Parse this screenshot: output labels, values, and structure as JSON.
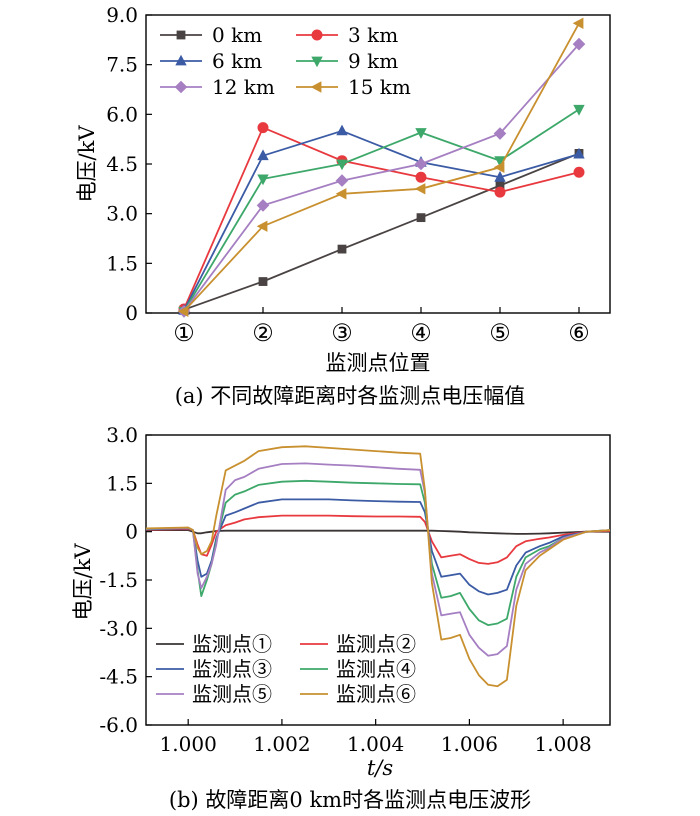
{
  "captions": {
    "a": "(a)  不同故障距离时各监测点电压幅值",
    "b": "(b)  故障距离0 km时各监测点电压波形"
  },
  "chart_data": [
    {
      "type": "line",
      "ylabel": "电压/kV",
      "xlabel": "监测点位置",
      "categories": [
        "①",
        "②",
        "③",
        "④",
        "⑤",
        "⑥"
      ],
      "ylim": [
        0,
        9.0
      ],
      "yticks": [
        "0",
        "1.5",
        "3.0",
        "4.5",
        "6.0",
        "7.5",
        "9.0"
      ],
      "legend_position": "top-left",
      "series": [
        {
          "name": "0 km",
          "color": "#4a4343",
          "marker": "square",
          "values": [
            0.1,
            0.95,
            1.93,
            2.88,
            3.85,
            4.82
          ]
        },
        {
          "name": "3 km",
          "color": "#e8393f",
          "marker": "circle",
          "values": [
            0.12,
            5.6,
            4.6,
            4.1,
            3.65,
            4.25
          ]
        },
        {
          "name": "6 km",
          "color": "#3b5ba5",
          "marker": "triangle",
          "values": [
            0.08,
            4.75,
            5.5,
            4.55,
            4.1,
            4.8
          ]
        },
        {
          "name": "9 km",
          "color": "#3da86a",
          "marker": "tri-down",
          "values": [
            0.05,
            4.05,
            4.5,
            5.45,
            4.6,
            6.15
          ]
        },
        {
          "name": "12 km",
          "color": "#a57fc2",
          "marker": "diamond",
          "values": [
            0.05,
            3.25,
            4.0,
            4.5,
            5.42,
            8.12
          ]
        },
        {
          "name": "15 km",
          "color": "#c8902f",
          "marker": "tri-left",
          "values": [
            0.05,
            2.62,
            3.6,
            3.75,
            4.4,
            8.75
          ]
        }
      ]
    },
    {
      "type": "line",
      "ylabel": "电压/kV",
      "xlabel": "t/s",
      "xlim": [
        0.9991,
        1.009
      ],
      "ylim": [
        -6.0,
        3.0
      ],
      "xticks": [
        "1.000",
        "1.002",
        "1.004",
        "1.006",
        "1.008"
      ],
      "yticks": [
        "3.0",
        "1.5",
        "0",
        "-1.5",
        "-3.0",
        "-4.5",
        "-6.0"
      ],
      "legend_position": "bottom-left",
      "time": [
        0.9991,
        1.0,
        1.0001,
        1.0002,
        1.00028,
        1.0004,
        1.0005,
        1.0006,
        1.0008,
        1.001,
        1.0012,
        1.0015,
        1.002,
        1.0025,
        1.003,
        1.0035,
        1.004,
        1.0045,
        1.00495,
        1.00505,
        1.0052,
        1.0054,
        1.0056,
        1.0058,
        1.006,
        1.0062,
        1.0064,
        1.0066,
        1.0068,
        1.007,
        1.0072,
        1.0075,
        1.0077,
        1.008,
        1.0085,
        1.009
      ],
      "series": [
        {
          "name": "监测点①",
          "color": "#3a3434",
          "values": [
            0.05,
            0.05,
            0,
            -0.05,
            -0.05,
            -0.02,
            0,
            0.02,
            0.03,
            0.03,
            0.03,
            0.03,
            0.03,
            0.03,
            0.03,
            0.03,
            0.03,
            0.03,
            0.03,
            0.03,
            0.03,
            0.02,
            0.01,
            0,
            -0.02,
            -0.03,
            -0.04,
            -0.05,
            -0.06,
            -0.07,
            -0.07,
            -0.06,
            -0.05,
            -0.03,
            0,
            0
          ]
        },
        {
          "name": "监测点②",
          "color": "#e8393f",
          "values": [
            0.06,
            0.08,
            0.05,
            -0.4,
            -0.7,
            -0.75,
            -0.4,
            0,
            0.2,
            0.28,
            0.38,
            0.45,
            0.5,
            0.5,
            0.5,
            0.48,
            0.47,
            0.47,
            0.46,
            0.3,
            -0.3,
            -0.8,
            -0.75,
            -0.7,
            -0.85,
            -0.97,
            -1.0,
            -0.95,
            -0.8,
            -0.45,
            -0.3,
            -0.22,
            -0.18,
            -0.1,
            0,
            0.02
          ]
        },
        {
          "name": "监测点③",
          "color": "#3b5ba5",
          "values": [
            0.07,
            0.1,
            0.05,
            -0.9,
            -1.4,
            -1.3,
            -0.9,
            -0.2,
            0.5,
            0.6,
            0.72,
            0.9,
            1.0,
            1.0,
            1.0,
            0.97,
            0.95,
            0.93,
            0.92,
            0.6,
            -0.6,
            -1.4,
            -1.35,
            -1.3,
            -1.65,
            -1.85,
            -1.95,
            -1.9,
            -1.8,
            -1.05,
            -0.65,
            -0.45,
            -0.35,
            -0.15,
            0,
            0.05
          ]
        },
        {
          "name": "监测点④",
          "color": "#3da86a",
          "values": [
            0.08,
            0.12,
            0.05,
            -1.2,
            -2.0,
            -1.5,
            -1.0,
            -0.3,
            0.9,
            1.15,
            1.25,
            1.45,
            1.55,
            1.58,
            1.55,
            1.52,
            1.5,
            1.48,
            1.47,
            0.9,
            -1.0,
            -2.05,
            -2.0,
            -1.9,
            -2.4,
            -2.75,
            -2.9,
            -2.85,
            -2.7,
            -1.4,
            -0.8,
            -0.55,
            -0.45,
            -0.2,
            0,
            0.05
          ]
        },
        {
          "name": "监测点⑤",
          "color": "#a57fc2",
          "values": [
            0.09,
            0.12,
            0.05,
            -1.3,
            -1.75,
            -1.4,
            -1.0,
            -0.4,
            1.3,
            1.6,
            1.7,
            1.95,
            2.1,
            2.12,
            2.08,
            2.05,
            2.0,
            1.95,
            1.92,
            1.2,
            -1.3,
            -2.6,
            -2.55,
            -2.5,
            -3.2,
            -3.6,
            -3.85,
            -3.8,
            -3.55,
            -1.8,
            -1.0,
            -0.65,
            -0.5,
            -0.2,
            0,
            0.05
          ]
        },
        {
          "name": "监测点⑥",
          "color": "#c8902f",
          "values": [
            0.1,
            0.13,
            0.05,
            -0.5,
            -0.7,
            -0.6,
            -0.3,
            0.5,
            1.9,
            2.05,
            2.2,
            2.5,
            2.62,
            2.65,
            2.6,
            2.55,
            2.5,
            2.45,
            2.42,
            1.3,
            -1.6,
            -3.35,
            -3.3,
            -3.2,
            -3.95,
            -4.45,
            -4.75,
            -4.8,
            -4.6,
            -2.3,
            -1.2,
            -0.75,
            -0.55,
            -0.25,
            0,
            0.05
          ]
        }
      ]
    }
  ]
}
